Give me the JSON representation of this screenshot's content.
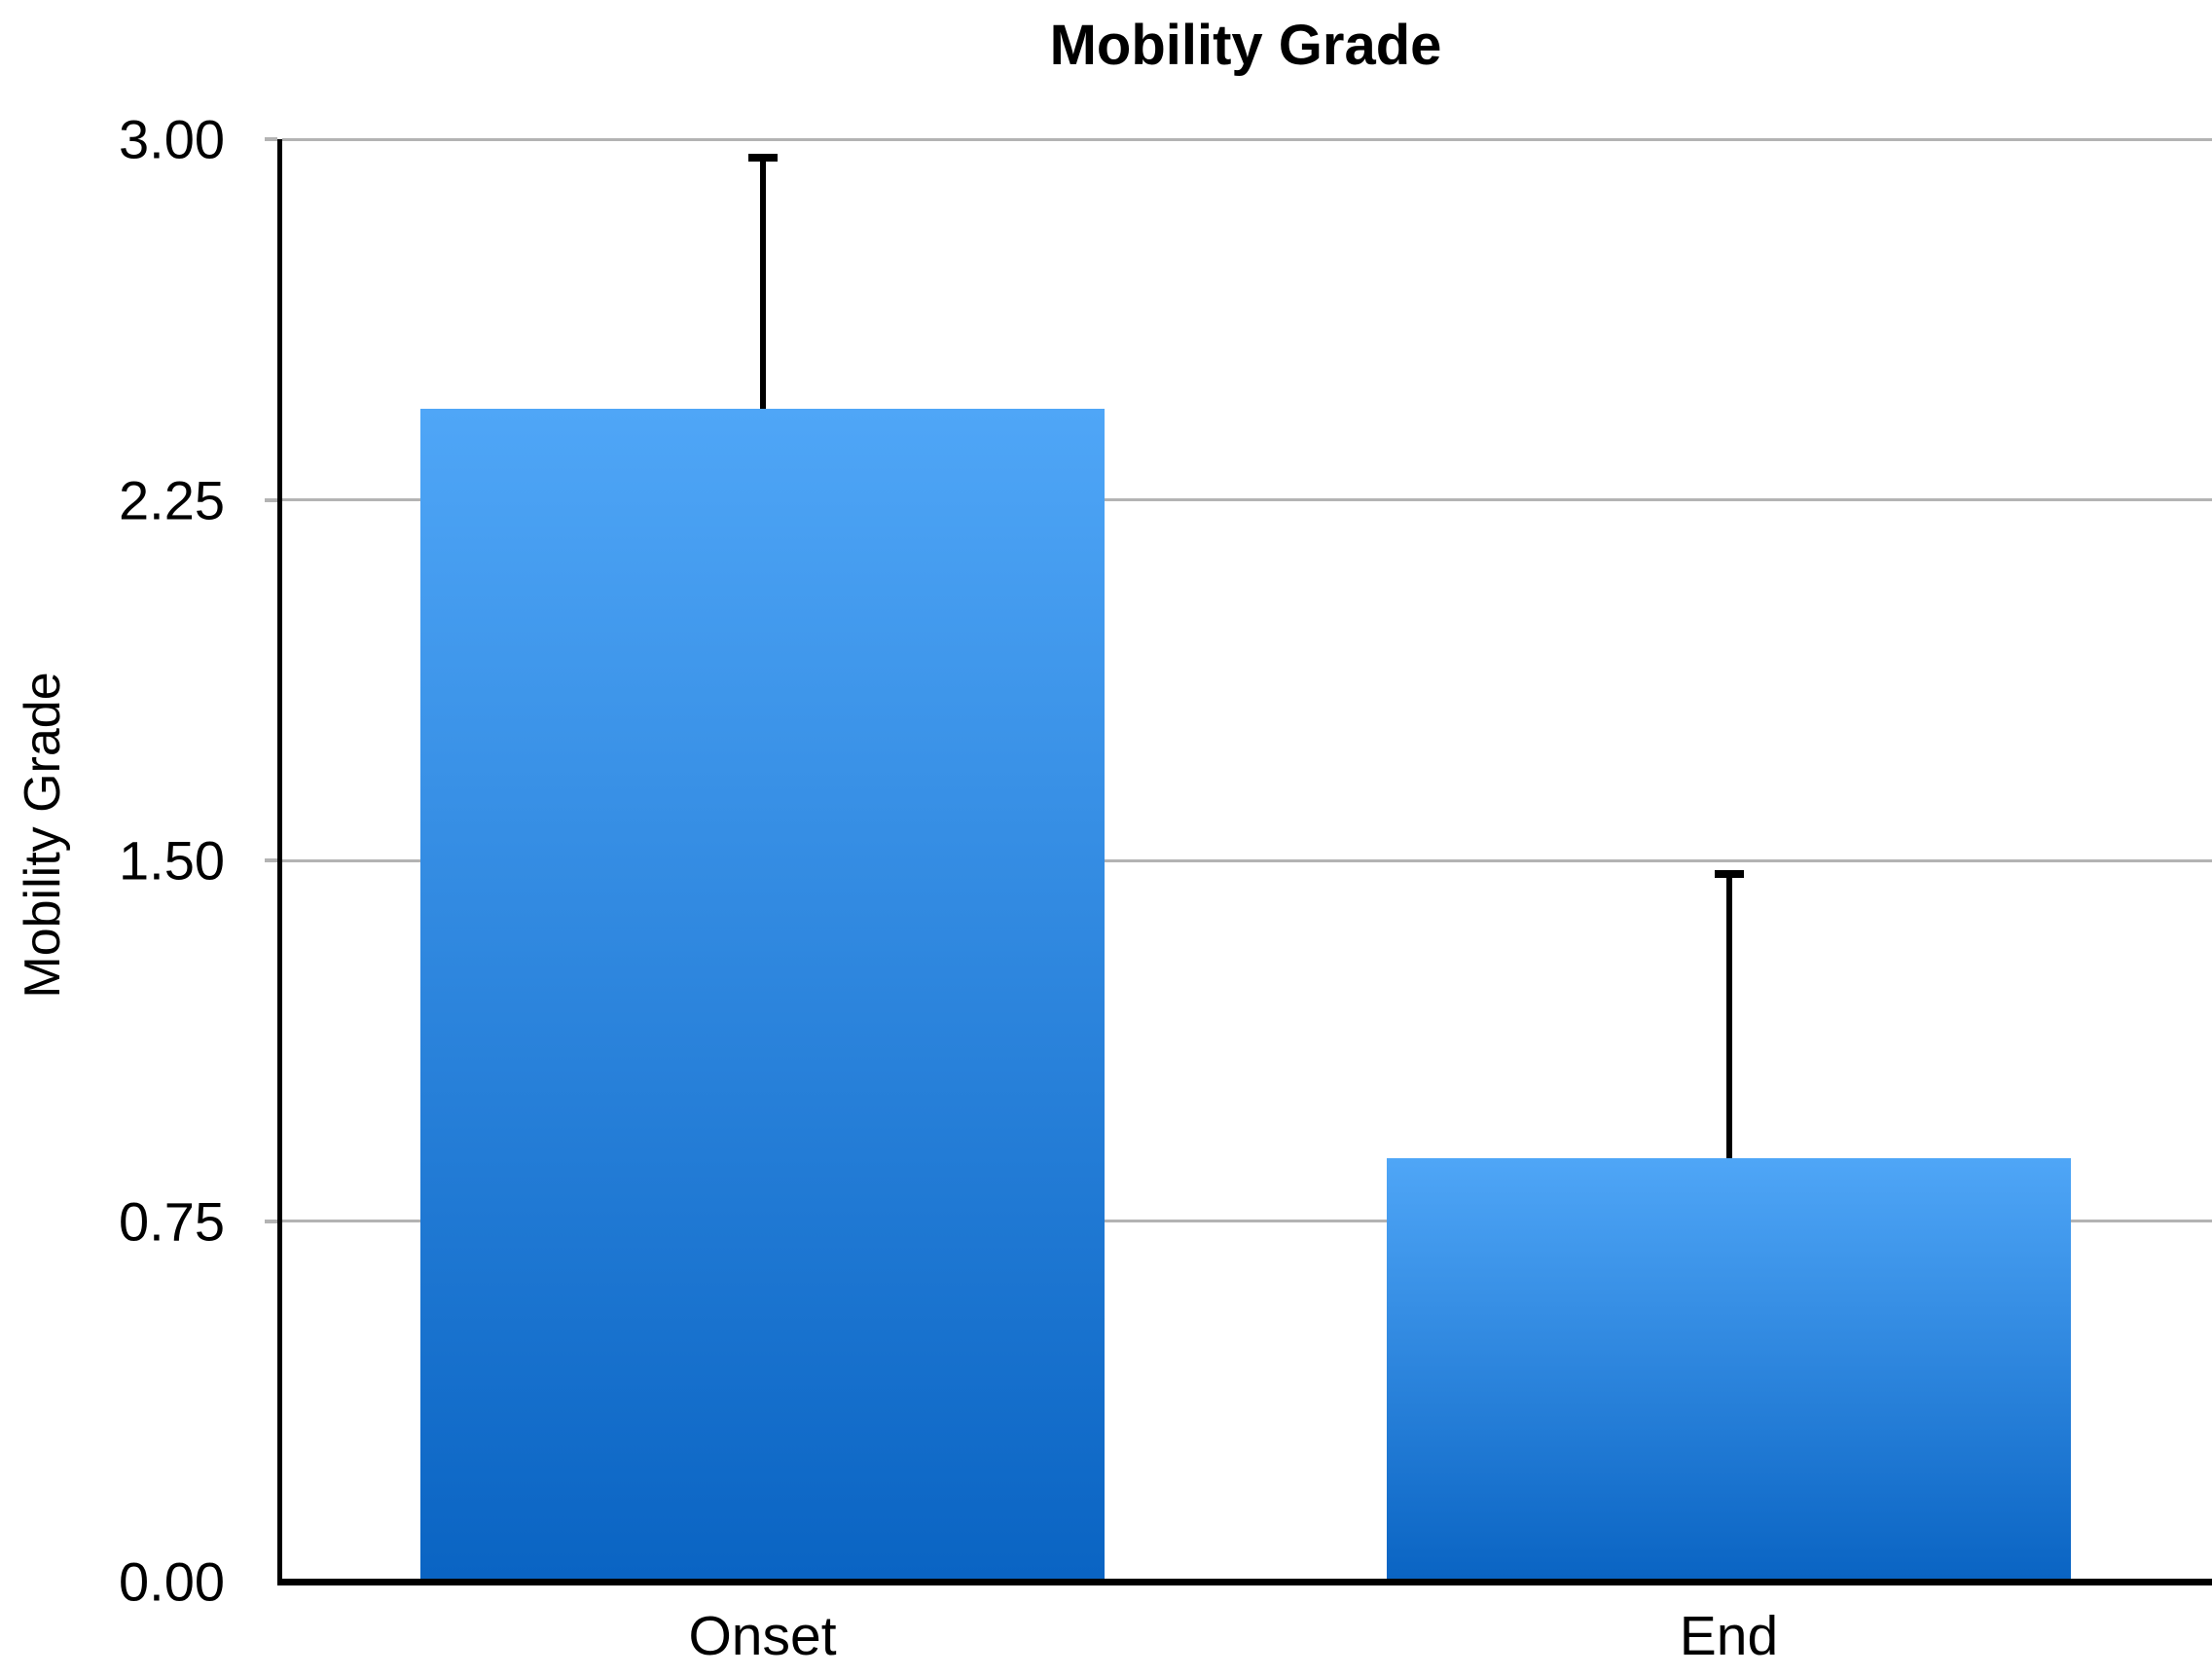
{
  "title": "Mobility Grade",
  "axes": {
    "y_label": "Mobility Grade",
    "x_label": "",
    "y_tick_labels": [
      "0.00",
      "0.75",
      "1.50",
      "2.25",
      "3.00"
    ]
  },
  "chart_data": {
    "type": "bar",
    "title": "Mobility Grade",
    "xlabel": "",
    "ylabel": "Mobility Grade",
    "categories": [
      "Onset",
      "End"
    ],
    "values": [
      2.44,
      0.88
    ],
    "error_plus": [
      0.53,
      0.6
    ],
    "error_bar_tops": [
      2.97,
      1.48
    ],
    "ylim": [
      0,
      3
    ],
    "yticks": [
      0,
      0.75,
      1.5,
      2.25,
      3
    ],
    "ytick_labels": [
      "0.00",
      "0.75",
      "1.50",
      "2.25",
      "3.00"
    ],
    "grid": true,
    "legend": false,
    "error_bars": "upper-only",
    "colors": {
      "bar_gradient_top": "#4FA6F7",
      "bar_gradient_bottom": "#0A64C3",
      "gridline": "#b3b3b3",
      "axis": "#000000",
      "text": "#000000",
      "background": "#ffffff"
    }
  }
}
